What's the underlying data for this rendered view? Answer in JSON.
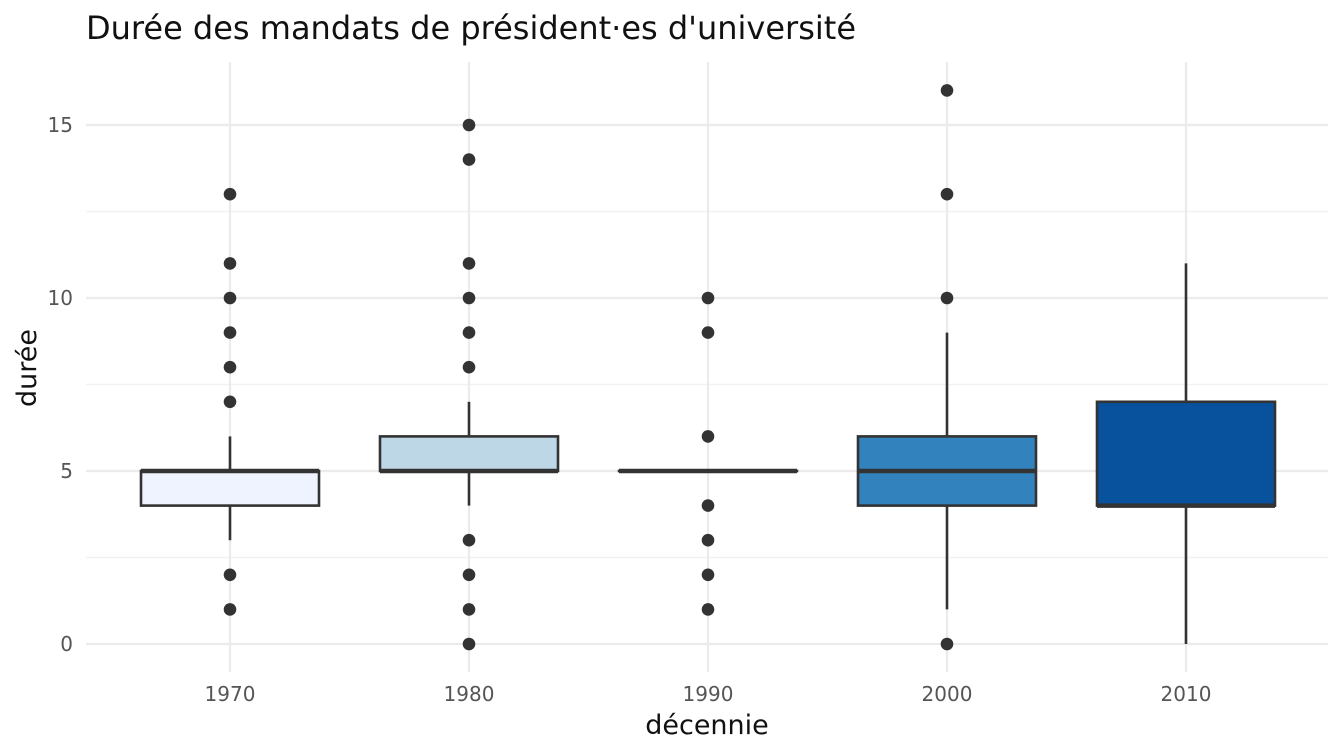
{
  "chart_data": {
    "type": "boxplot",
    "title": "Durée des mandats de président·es d'université",
    "xlabel": "décennie",
    "ylabel": "durée",
    "ylim": [
      -0.8,
      16.8
    ],
    "yticks": [
      0,
      5,
      10,
      15
    ],
    "grid": true,
    "categories": [
      "1970",
      "1980",
      "1990",
      "2000",
      "2010"
    ],
    "boxes": [
      {
        "category": "1970",
        "whisker_low": 3,
        "q1": 4,
        "median": 5,
        "q3": 5,
        "whisker_high": 6,
        "outliers": [
          13,
          11,
          10,
          9,
          8,
          7,
          2,
          1
        ],
        "fill": "#eff3ff"
      },
      {
        "category": "1980",
        "whisker_low": 4,
        "q1": 5,
        "median": 5,
        "q3": 6,
        "whisker_high": 7,
        "outliers": [
          15,
          14,
          11,
          10,
          9,
          8,
          3,
          2,
          1,
          0
        ],
        "fill": "#bdd7e7"
      },
      {
        "category": "1990",
        "whisker_low": 5,
        "q1": 5,
        "median": 5,
        "q3": 5,
        "whisker_high": 5,
        "outliers": [
          10,
          9,
          6,
          4,
          3,
          2,
          1
        ],
        "fill": "#6baed6"
      },
      {
        "category": "2000",
        "whisker_low": 1,
        "q1": 4,
        "median": 5,
        "q3": 6,
        "whisker_high": 9,
        "outliers": [
          16,
          13,
          10,
          0
        ],
        "fill": "#3182bd"
      },
      {
        "category": "2010",
        "whisker_low": 0,
        "q1": 4,
        "median": 4,
        "q3": 7,
        "whisker_high": 11,
        "outliers": [],
        "fill": "#08519c"
      }
    ]
  }
}
